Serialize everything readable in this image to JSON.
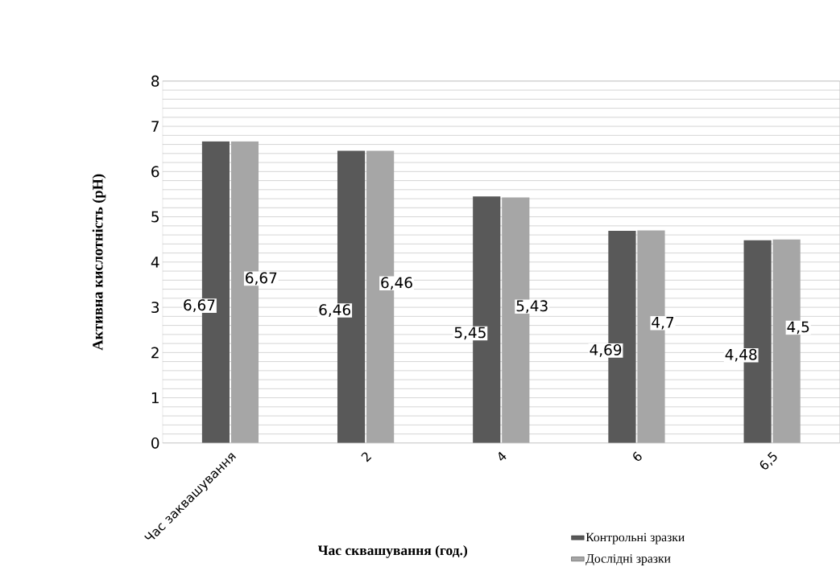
{
  "chart_data": {
    "type": "bar",
    "xlabel": "Час сквашування (год.)",
    "ylabel": "Активна кислотність (pH)",
    "categories": [
      "Час заквашування",
      "2",
      "4",
      "6",
      "6,5"
    ],
    "series": [
      {
        "name": "Контрольні зразки",
        "color": "#595959",
        "values": [
          6.67,
          6.46,
          5.45,
          4.69,
          4.48
        ],
        "value_labels": [
          "6,67",
          "6,46",
          "5,45",
          "4,69",
          "4,48"
        ]
      },
      {
        "name": "Дослідні зразки",
        "color": "#a6a6a6",
        "values": [
          6.67,
          6.46,
          5.43,
          4.7,
          4.5
        ],
        "value_labels": [
          "6,67",
          "6,46",
          "5,43",
          "4,7",
          "4,5"
        ]
      }
    ],
    "ylim": [
      0,
      8
    ],
    "yticks": [
      0,
      {
        "value": 0.2,
        "label": null
      },
      {
        "value": 0.4,
        "label": null
      },
      {
        "value": 0.6,
        "label": null
      },
      {
        "value": 0.8,
        "label": null
      },
      1,
      {
        "value": 1.2,
        "label": null
      },
      {
        "value": 1.4,
        "label": null
      },
      {
        "value": 1.6,
        "label": null
      },
      {
        "value": 1.8,
        "label": null
      },
      2,
      {
        "value": 2.2,
        "label": null
      },
      {
        "value": 2.4,
        "label": null
      },
      {
        "value": 2.6,
        "label": null
      },
      {
        "value": 2.8,
        "label": null
      },
      3,
      {
        "value": 3.2,
        "label": null
      },
      {
        "value": 3.4,
        "label": null
      },
      {
        "value": 3.6,
        "label": null
      },
      {
        "value": 3.8,
        "label": null
      },
      4,
      {
        "value": 4.2,
        "label": null
      },
      {
        "value": 4.4,
        "label": null
      },
      {
        "value": 4.6,
        "label": null
      },
      {
        "value": 4.8,
        "label": null
      },
      5,
      {
        "value": 5.2,
        "label": null
      },
      {
        "value": 5.4,
        "label": null
      },
      {
        "value": 5.6,
        "label": null
      },
      {
        "value": 5.8,
        "label": null
      },
      6,
      {
        "value": 6.2,
        "label": null
      },
      {
        "value": 6.4,
        "label": null
      },
      {
        "value": 6.6,
        "label": null
      },
      {
        "value": 6.8,
        "label": null
      },
      7,
      {
        "value": 7.2,
        "label": null
      },
      {
        "value": 7.4,
        "label": null
      },
      {
        "value": 7.6,
        "label": null
      },
      {
        "value": 7.8,
        "label": null
      },
      8
    ],
    "grid": "y",
    "legend": "bottom right"
  }
}
